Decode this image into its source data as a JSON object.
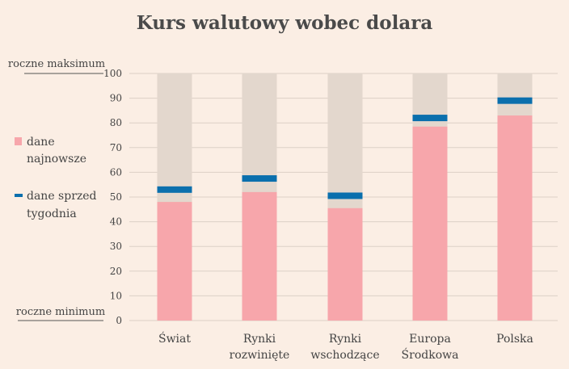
{
  "chart_data": {
    "type": "bar",
    "title": "Kurs walutowy wobec dolara",
    "categories": [
      [
        "Świat"
      ],
      [
        "Rynki",
        "rozwinięte"
      ],
      [
        "Rynki",
        "wschodzące"
      ],
      [
        "Europa",
        "Środkowa"
      ],
      [
        "Polska"
      ]
    ],
    "series": [
      {
        "name": "dane najnowsze",
        "values": [
          48,
          52,
          45.5,
          78.5,
          83
        ]
      },
      {
        "name": "dane sprzed tygodnia",
        "values": [
          53,
          57.5,
          50.5,
          82,
          89
        ]
      }
    ],
    "range_max": 100,
    "ylim": [
      0,
      100
    ],
    "yticks": [
      0,
      10,
      20,
      30,
      40,
      50,
      60,
      70,
      80,
      90,
      100
    ],
    "annotation_top": "roczne maksimum",
    "annotation_bottom": "roczne minimum",
    "legend_labels": [
      [
        "dane",
        "najnowsze"
      ],
      [
        "dane sprzed",
        "tygodnia"
      ]
    ],
    "grid": true,
    "legend_position": "left"
  },
  "colors": {
    "latest": "#f7a6ab",
    "week_ago": "#0a6fad",
    "range": "#e3d7cd",
    "grid": "#dcd0c6",
    "background": "#fbeee4"
  }
}
